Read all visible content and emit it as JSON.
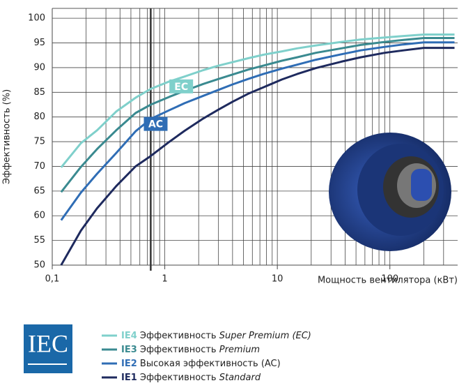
{
  "chart_data": {
    "type": "line",
    "x_label": "Мощность вентилятора (кВт)",
    "y_label": "Эффективность  (%)",
    "log_x": true,
    "grid": true,
    "xlim": [
      0.1,
      400
    ],
    "ylim": [
      50,
      102
    ],
    "xticks": [
      {
        "value": 0.1,
        "label": "0,1"
      },
      1,
      10,
      100
    ],
    "xminorticks": [
      0.2,
      0.3,
      0.4,
      0.5,
      0.6,
      0.7,
      0.8,
      0.9,
      2,
      3,
      4,
      5,
      6,
      7,
      8,
      9,
      20,
      30,
      40,
      50,
      60,
      70,
      80,
      90,
      200,
      300
    ],
    "marker_x": 0.75,
    "yticks": [
      50,
      55,
      60,
      65,
      70,
      75,
      80,
      85,
      90,
      95,
      100
    ],
    "x": [
      0.12,
      0.18,
      0.25,
      0.37,
      0.55,
      0.75,
      1.1,
      1.5,
      2.2,
      3,
      4,
      5.5,
      7.5,
      11,
      15,
      22,
      37,
      55,
      90,
      132,
      200,
      375
    ],
    "series": [
      {
        "name": "IE4",
        "description": "Эффективность",
        "description_italic": "Super Premium (EC)",
        "color": "#7fd0cb",
        "values": [
          69.8,
          74.7,
          77.3,
          81.1,
          83.9,
          85.7,
          87.2,
          88.2,
          89.5,
          90.4,
          91.1,
          91.9,
          92.6,
          93.3,
          93.9,
          94.5,
          95.2,
          95.7,
          96.1,
          96.4,
          96.7,
          96.7
        ]
      },
      {
        "name": "IE3",
        "description": "Эффективность",
        "description_italic": "Premium",
        "color": "#3a8a90",
        "values": [
          64.8,
          69.9,
          73.5,
          77.3,
          80.8,
          82.5,
          84.1,
          85.3,
          86.7,
          87.7,
          88.6,
          89.6,
          90.4,
          91.4,
          92.1,
          93.0,
          93.9,
          94.6,
          95.2,
          95.6,
          96.0,
          96.0
        ]
      },
      {
        "name": "IE2",
        "description": "Высокая эффективность (AC)",
        "color": "#2f6db5",
        "values": [
          59.1,
          64.7,
          68.5,
          72.7,
          77.1,
          79.6,
          81.4,
          82.8,
          84.3,
          85.5,
          86.6,
          87.7,
          88.7,
          89.8,
          90.6,
          91.6,
          92.7,
          93.5,
          94.2,
          94.7,
          95.1,
          95.1
        ]
      },
      {
        "name": "IE1",
        "description": "Эффективность",
        "description_italic": "Standard",
        "color": "#1e2a5e",
        "values": [
          50.0,
          57.0,
          61.5,
          66.0,
          70.0,
          72.1,
          75.0,
          77.2,
          79.7,
          81.5,
          83.1,
          84.7,
          86.0,
          87.6,
          88.7,
          89.9,
          91.2,
          92.1,
          93.0,
          93.5,
          94.0,
          94.0
        ]
      }
    ],
    "annotations": [
      {
        "text": "EC",
        "x": 1.4,
        "y": 86.2,
        "color": "#7fd0cb"
      },
      {
        "text": "AC",
        "x": 0.83,
        "y": 78.6,
        "color": "#2f6db5"
      }
    ],
    "logo": "IEC"
  }
}
